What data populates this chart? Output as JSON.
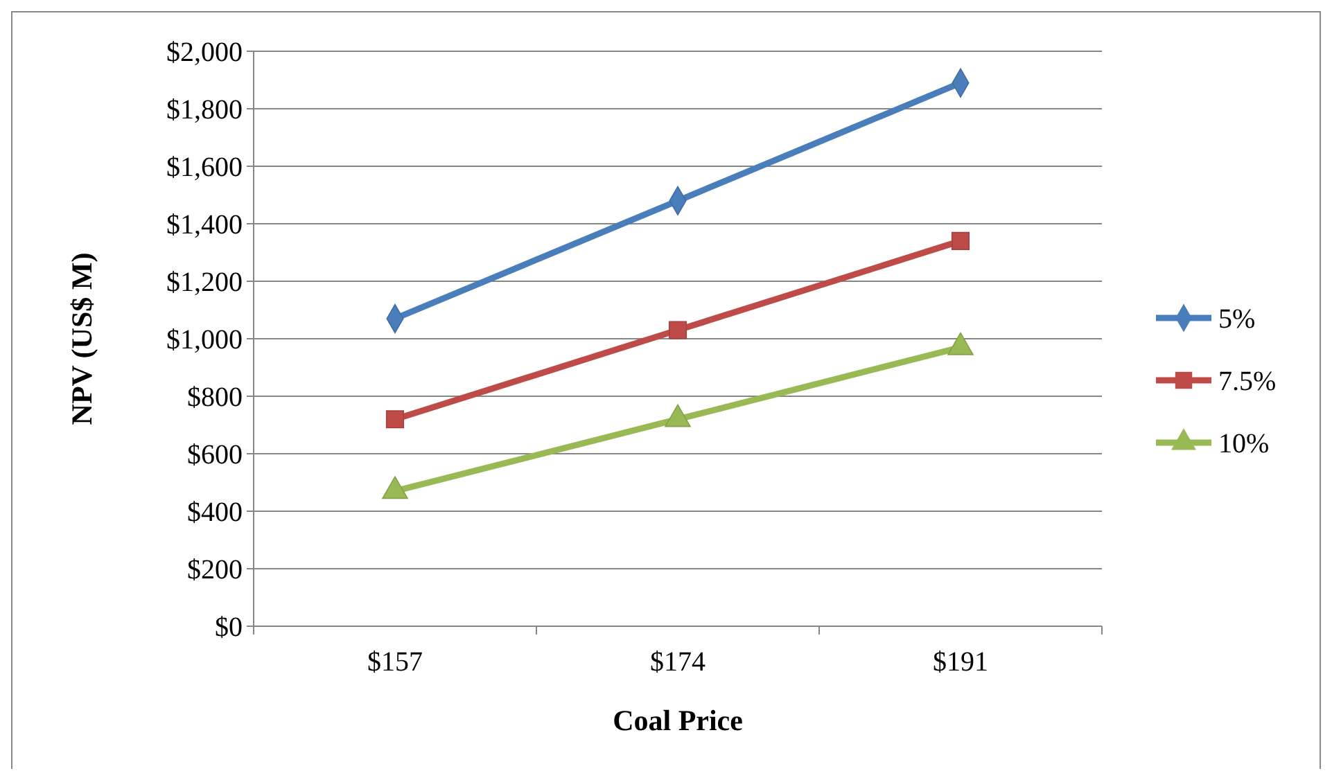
{
  "chart_data": {
    "type": "line",
    "xlabel": "Coal Price",
    "ylabel": "NPV (US$ M)",
    "categories": [
      "$157",
      "$174",
      "$191"
    ],
    "series": [
      {
        "name": "5%",
        "color": "#4a7ebb",
        "marker": "diamond",
        "values": [
          1070,
          1480,
          1890
        ]
      },
      {
        "name": "7.5%",
        "color": "#be4b48",
        "marker": "square",
        "values": [
          720,
          1030,
          1340
        ]
      },
      {
        "name": "10%",
        "color": "#98b954",
        "marker": "triangle",
        "values": [
          470,
          720,
          970
        ]
      }
    ],
    "ylim": [
      0,
      2000
    ],
    "yticks": [
      {
        "value": 0,
        "label": "$0"
      },
      {
        "value": 200,
        "label": "$200"
      },
      {
        "value": 400,
        "label": "$400"
      },
      {
        "value": 600,
        "label": "$600"
      },
      {
        "value": 800,
        "label": "$800"
      },
      {
        "value": 1000,
        "label": "$1,000"
      },
      {
        "value": 1200,
        "label": "$1,200"
      },
      {
        "value": 1400,
        "label": "$1,400"
      },
      {
        "value": 1600,
        "label": "$1,600"
      },
      {
        "value": 1800,
        "label": "$1,800"
      },
      {
        "value": 2000,
        "label": "$2,000"
      }
    ],
    "grid": "y",
    "legend": "right",
    "line_style": "solid"
  }
}
